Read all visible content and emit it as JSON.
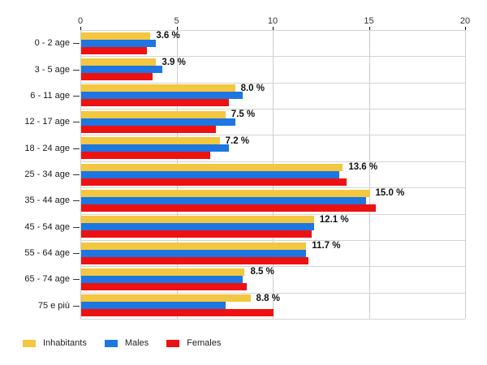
{
  "chart_data": {
    "type": "bar",
    "orientation": "horizontal",
    "title": "",
    "xlabel": "",
    "ylabel": "",
    "xlim": [
      0,
      20
    ],
    "x_ticks": [
      "0",
      "5",
      "10",
      "15",
      "20"
    ],
    "grid": true,
    "legend_position": "bottom-left",
    "categories": [
      "0 - 2 age",
      "3 - 5 age",
      "6 - 11 age",
      "12 - 17 age",
      "18 - 24 age",
      "25 - 34 age",
      "35 - 44 age",
      "45 - 54 age",
      "55 - 64 age",
      "65 - 74 age",
      "75 e più"
    ],
    "series": [
      {
        "name": "Inhabitants",
        "color": "#F3C73F",
        "values": [
          3.6,
          3.9,
          8.0,
          7.5,
          7.2,
          13.6,
          15.0,
          12.1,
          11.7,
          8.5,
          8.8
        ]
      },
      {
        "name": "Males",
        "color": "#1D76E2",
        "values": [
          3.9,
          4.2,
          8.4,
          8.0,
          7.7,
          13.4,
          14.8,
          12.1,
          11.7,
          8.4,
          7.5
        ]
      },
      {
        "name": "Females",
        "color": "#EE1111",
        "values": [
          3.4,
          3.7,
          7.7,
          7.0,
          6.7,
          13.8,
          15.3,
          12.0,
          11.8,
          8.6,
          10.0
        ]
      }
    ],
    "value_labels": [
      "3.6 %",
      "3.9 %",
      "8.0 %",
      "7.5 %",
      "7.2 %",
      "13.6 %",
      "15.0 %",
      "12.1 %",
      "11.7 %",
      "8.5 %",
      "8.8 %"
    ],
    "gridline_color": "#cccccc",
    "tick_color": "#000000",
    "text_color": "#1a1a1a"
  }
}
